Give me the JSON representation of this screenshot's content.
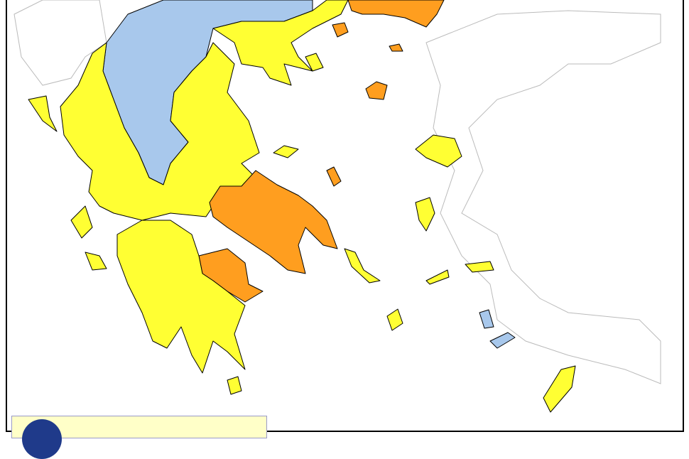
{
  "map": {
    "risk_colors": {
      "level_2": "#ffff33",
      "level_1": "#a8c8ec",
      "level_3": "#ff9e1f"
    },
    "neighbouring_land_color": "#ffffff"
  },
  "legend": {
    "logo": "civil-protection-logo",
    "background": "#ffffc8"
  }
}
